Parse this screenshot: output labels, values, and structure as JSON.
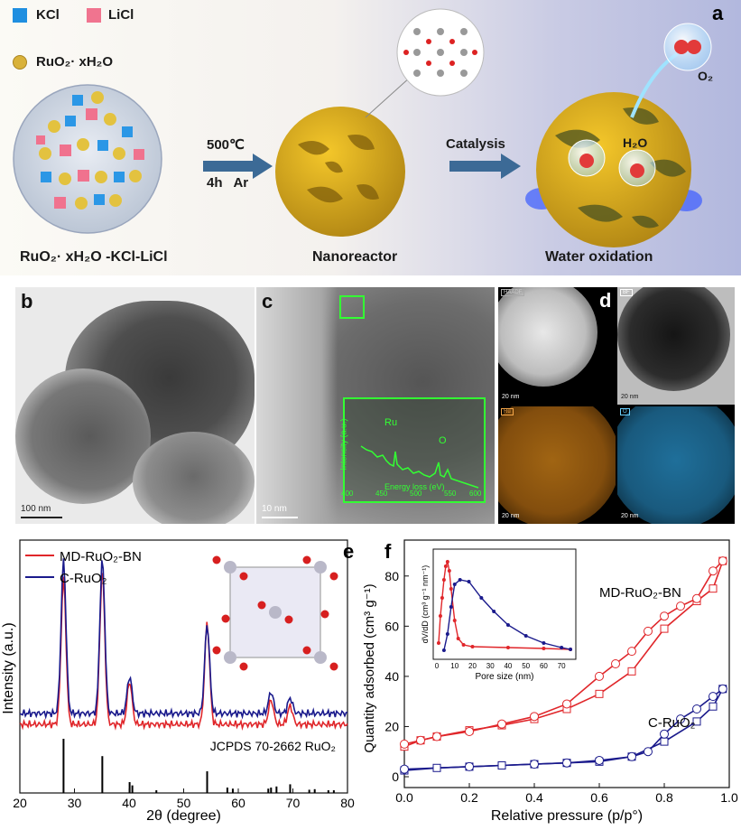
{
  "panel_a": {
    "letter": "a",
    "legend": {
      "kcl": "KCl",
      "licl": "LiCl",
      "ruo2": "RuO₂· xH₂O"
    },
    "step1_top": "500℃",
    "step1_bottom": "4h   Ar",
    "step2": "Catalysis",
    "label_precursor": "RuO₂· xH₂O -KCl-LiCl",
    "label_nanoreactor": "Nanoreactor",
    "label_water": "Water oxidation",
    "o2": "O₂",
    "h2o": "H₂O"
  },
  "panel_b": {
    "letter": "b",
    "scale": "100 nm"
  },
  "panel_c": {
    "letter": "c",
    "scale": "10 nm",
    "inset": {
      "peak1": "Ru",
      "peak2": "O",
      "xlabel": "Energy loss (eV)",
      "ylabel": "Intensity (a.u.)",
      "ticks": [
        "400",
        "450",
        "500",
        "550",
        "600"
      ]
    }
  },
  "panel_d": {
    "letter": "d",
    "scales": [
      "20 nm",
      "20 nm",
      "20 nm",
      "20 nm"
    ],
    "tags": [
      "HAADF",
      "BF",
      "Ru",
      "O"
    ]
  },
  "panel_e": {
    "letter": "e"
  },
  "panel_f": {
    "letter": "f"
  },
  "colors": {
    "red": "#e0262a",
    "blue": "#1a1a8c",
    "green": "#33ff33"
  },
  "chart_data": [
    {
      "type": "line",
      "xlabel": "2θ (degree)",
      "ylabel": "Intensity (a.u.)",
      "xlim": [
        20,
        80
      ],
      "xticks": [
        "20",
        "30",
        "40",
        "50",
        "60",
        "70",
        "80"
      ],
      "reference_label": "JCPDS 70-2662 RuO₂",
      "series": [
        {
          "name": "MD-RuO₂-BN",
          "color": "#e0262a",
          "peaks": [
            [
              28.0,
              95
            ],
            [
              35.1,
              100
            ],
            [
              40.1,
              28
            ],
            [
              54.3,
              66
            ],
            [
              66.0,
              16
            ],
            [
              69.5,
              12
            ]
          ]
        },
        {
          "name": "C-RuO₂",
          "color": "#1a1a8c",
          "peaks": [
            [
              28.0,
              100
            ],
            [
              35.1,
              100
            ],
            [
              40.1,
              24
            ],
            [
              54.3,
              58
            ],
            [
              66.0,
              14
            ],
            [
              69.5,
              10
            ]
          ]
        }
      ],
      "reference_lines": [
        [
          28.0,
          100
        ],
        [
          35.1,
          68
        ],
        [
          40.1,
          20
        ],
        [
          40.6,
          14
        ],
        [
          45.0,
          5
        ],
        [
          54.3,
          40
        ],
        [
          58.0,
          10
        ],
        [
          59.0,
          8
        ],
        [
          65.5,
          8
        ],
        [
          66.0,
          10
        ],
        [
          67.0,
          12
        ],
        [
          69.5,
          16
        ],
        [
          73.0,
          6
        ],
        [
          74.0,
          7
        ],
        [
          76.5,
          5
        ],
        [
          77.5,
          5
        ]
      ]
    },
    {
      "type": "line",
      "xlabel": "Relative pressure (p/p°)",
      "ylabel": "Quantity adsorbed (cm³ g⁻¹)",
      "xlim": [
        0.0,
        1.0
      ],
      "ylim": [
        0,
        90
      ],
      "xticks": [
        "0.0",
        "0.2",
        "0.4",
        "0.6",
        "0.8",
        "1.0"
      ],
      "yticks": [
        "0",
        "20",
        "40",
        "60",
        "80"
      ],
      "series": [
        {
          "name": "MD-RuO₂-BN",
          "color": "#e0262a",
          "adsorption": [
            [
              0.0,
              12
            ],
            [
              0.05,
              14.5
            ],
            [
              0.1,
              16
            ],
            [
              0.2,
              18.5
            ],
            [
              0.3,
              20.5
            ],
            [
              0.4,
              23
            ],
            [
              0.5,
              27
            ],
            [
              0.6,
              33
            ],
            [
              0.7,
              42
            ],
            [
              0.8,
              59
            ],
            [
              0.9,
              70
            ],
            [
              0.95,
              75
            ],
            [
              0.98,
              86
            ]
          ],
          "desorption": [
            [
              0.98,
              86
            ],
            [
              0.95,
              82
            ],
            [
              0.9,
              71
            ],
            [
              0.85,
              68
            ],
            [
              0.8,
              64
            ],
            [
              0.75,
              58
            ],
            [
              0.7,
              50
            ],
            [
              0.65,
              45
            ],
            [
              0.6,
              40
            ],
            [
              0.5,
              29
            ],
            [
              0.4,
              24
            ],
            [
              0.3,
              21
            ],
            [
              0.2,
              18
            ],
            [
              0.1,
              16
            ],
            [
              0.05,
              14.5
            ],
            [
              0.0,
              13
            ]
          ]
        },
        {
          "name": "C-RuO₂",
          "color": "#1a1a8c",
          "adsorption": [
            [
              0.0,
              2.5
            ],
            [
              0.1,
              3.5
            ],
            [
              0.2,
              4
            ],
            [
              0.3,
              4.5
            ],
            [
              0.4,
              5
            ],
            [
              0.5,
              5.5
            ],
            [
              0.6,
              6
            ],
            [
              0.7,
              8
            ],
            [
              0.8,
              14
            ],
            [
              0.9,
              22
            ],
            [
              0.95,
              28
            ],
            [
              0.98,
              35
            ]
          ],
          "desorption": [
            [
              0.98,
              35
            ],
            [
              0.95,
              32
            ],
            [
              0.9,
              27
            ],
            [
              0.85,
              23
            ],
            [
              0.8,
              17
            ],
            [
              0.75,
              10
            ],
            [
              0.7,
              8
            ],
            [
              0.6,
              6.5
            ],
            [
              0.5,
              5.5
            ],
            [
              0.4,
              5
            ],
            [
              0.2,
              4
            ],
            [
              0.0,
              3
            ]
          ]
        }
      ],
      "inset": {
        "xlabel": "Pore size (nm)",
        "ylabel": "dV/dD (cm³ g⁻¹ nm⁻¹)",
        "xticks": [
          "0",
          "10",
          "20",
          "30",
          "40",
          "50",
          "60",
          "70"
        ],
        "series": [
          {
            "name": "MD-RuO₂-BN",
            "color": "#e0262a",
            "points": [
              [
                1,
                0.1
              ],
              [
                2,
                0.4
              ],
              [
                3,
                0.6
              ],
              [
                4,
                0.8
              ],
              [
                5,
                0.95
              ],
              [
                6,
                1.0
              ],
              [
                7,
                0.9
              ],
              [
                8,
                0.7
              ],
              [
                10,
                0.35
              ],
              [
                12,
                0.15
              ],
              [
                15,
                0.08
              ],
              [
                20,
                0.06
              ],
              [
                40,
                0.05
              ],
              [
                60,
                0.04
              ],
              [
                75,
                0.03
              ]
            ]
          },
          {
            "name": "C-RuO₂",
            "color": "#1a1a8c",
            "points": [
              [
                4,
                0.02
              ],
              [
                6,
                0.2
              ],
              [
                8,
                0.5
              ],
              [
                10,
                0.75
              ],
              [
                13,
                0.8
              ],
              [
                18,
                0.78
              ],
              [
                25,
                0.6
              ],
              [
                32,
                0.45
              ],
              [
                40,
                0.3
              ],
              [
                50,
                0.18
              ],
              [
                60,
                0.1
              ],
              [
                70,
                0.05
              ],
              [
                75,
                0.03
              ]
            ]
          }
        ]
      }
    }
  ]
}
